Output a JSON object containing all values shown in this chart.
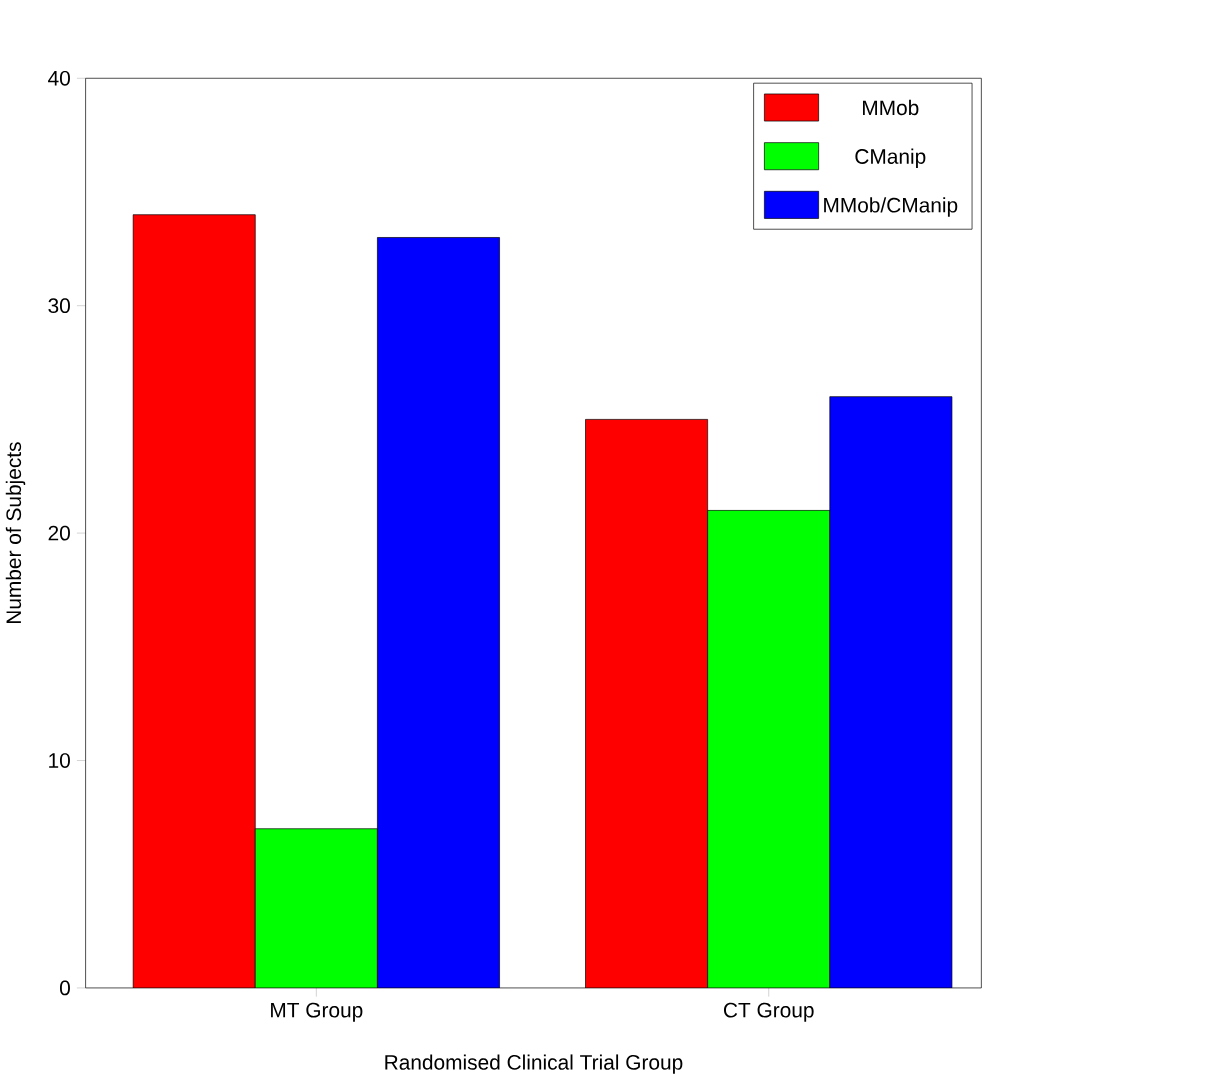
{
  "chart_data": {
    "type": "bar",
    "xlabel": "Randomised Clinical Trial Group",
    "ylabel": "Number of Subjects",
    "categories": [
      "MT Group",
      "CT Group"
    ],
    "series": [
      {
        "name": "MMob",
        "color": "#ff0000",
        "values": [
          34,
          25
        ]
      },
      {
        "name": "CManip",
        "color": "#00ff00",
        "values": [
          7,
          21
        ]
      },
      {
        "name": "MMob/CManip",
        "color": "#0000ff",
        "values": [
          33,
          26
        ]
      }
    ],
    "ylim": [
      0,
      40
    ],
    "yticks": [
      0,
      10,
      20,
      30,
      40
    ],
    "grid": false,
    "legend": "top right"
  }
}
